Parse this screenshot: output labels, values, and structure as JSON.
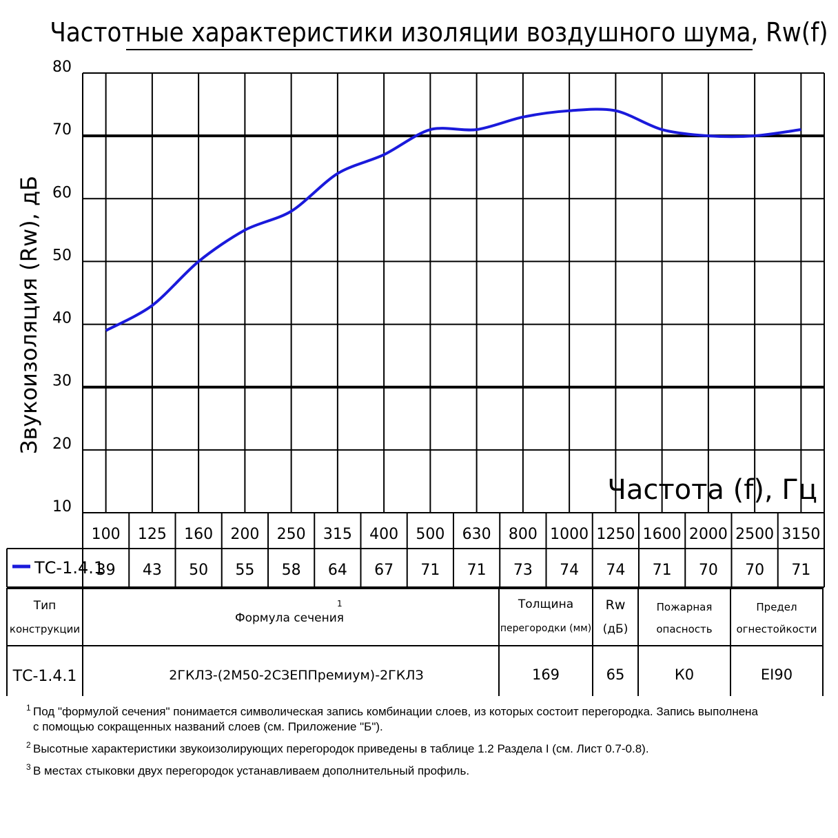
{
  "chart_data": {
    "type": "line",
    "title": "Частотные характеристики изоляции воздушного шума, Rw(f)",
    "ylabel": "Звукоизоляция (Rw), дБ",
    "xlabel": "Частота (f), Гц",
    "ylim": [
      10,
      80
    ],
    "yticks": [
      "10",
      "20",
      "30",
      "40",
      "50",
      "60",
      "70",
      "80"
    ],
    "categories": [
      "100",
      "125",
      "160",
      "200",
      "250",
      "315",
      "400",
      "500",
      "630",
      "800",
      "1000",
      "1250",
      "1600",
      "2000",
      "2500",
      "3150"
    ],
    "grid": true,
    "series": [
      {
        "name": "ТС-1.4.1",
        "color": "#1a1adb",
        "values": [
          39,
          43,
          50,
          55,
          58,
          64,
          67,
          71,
          71,
          73,
          74,
          74,
          71,
          70,
          70,
          71
        ]
      }
    ]
  },
  "legend": {
    "label": "ТС-1.4.1"
  },
  "table": {
    "headers": {
      "type": [
        "Тип",
        "конструкции"
      ],
      "formula": "Формула сечения",
      "formula_sup": "1",
      "thickness": [
        "Толщина",
        "перегородки (мм)"
      ],
      "rw": [
        "Rw",
        "(дБ)"
      ],
      "fire_hazard": [
        "Пожарная",
        "опасность"
      ],
      "fire_limit": [
        "Предел",
        "огнестойкости"
      ]
    },
    "row": {
      "type": "ТС-1.4.1",
      "formula": "2ГКЛЗ-(2М50-2СЗЕППремиум)-2ГКЛЗ",
      "thickness": "169",
      "rw": "65",
      "fire_hazard": "К0",
      "fire_limit": "EI90"
    }
  },
  "notes": [
    {
      "sup": "1",
      "line1": "Под \"формулой сечения\" понимается символическая запись комбинации слоев, из которых состоит перегородка. Запись выполнена",
      "line2": "с помощью сокращенных названий слоев (см. Приложение \"Б\")."
    },
    {
      "sup": "2",
      "line1": "Высотные характеристики звукоизолирующих перегородок приведены в таблице 1.2 Раздела I (см. Лист 0.7-0.8).",
      "line2": ""
    },
    {
      "sup": "3",
      "line1": "В местах стыковки двух перегородок устанавливаем дополнительный профиль.",
      "line2": ""
    }
  ]
}
